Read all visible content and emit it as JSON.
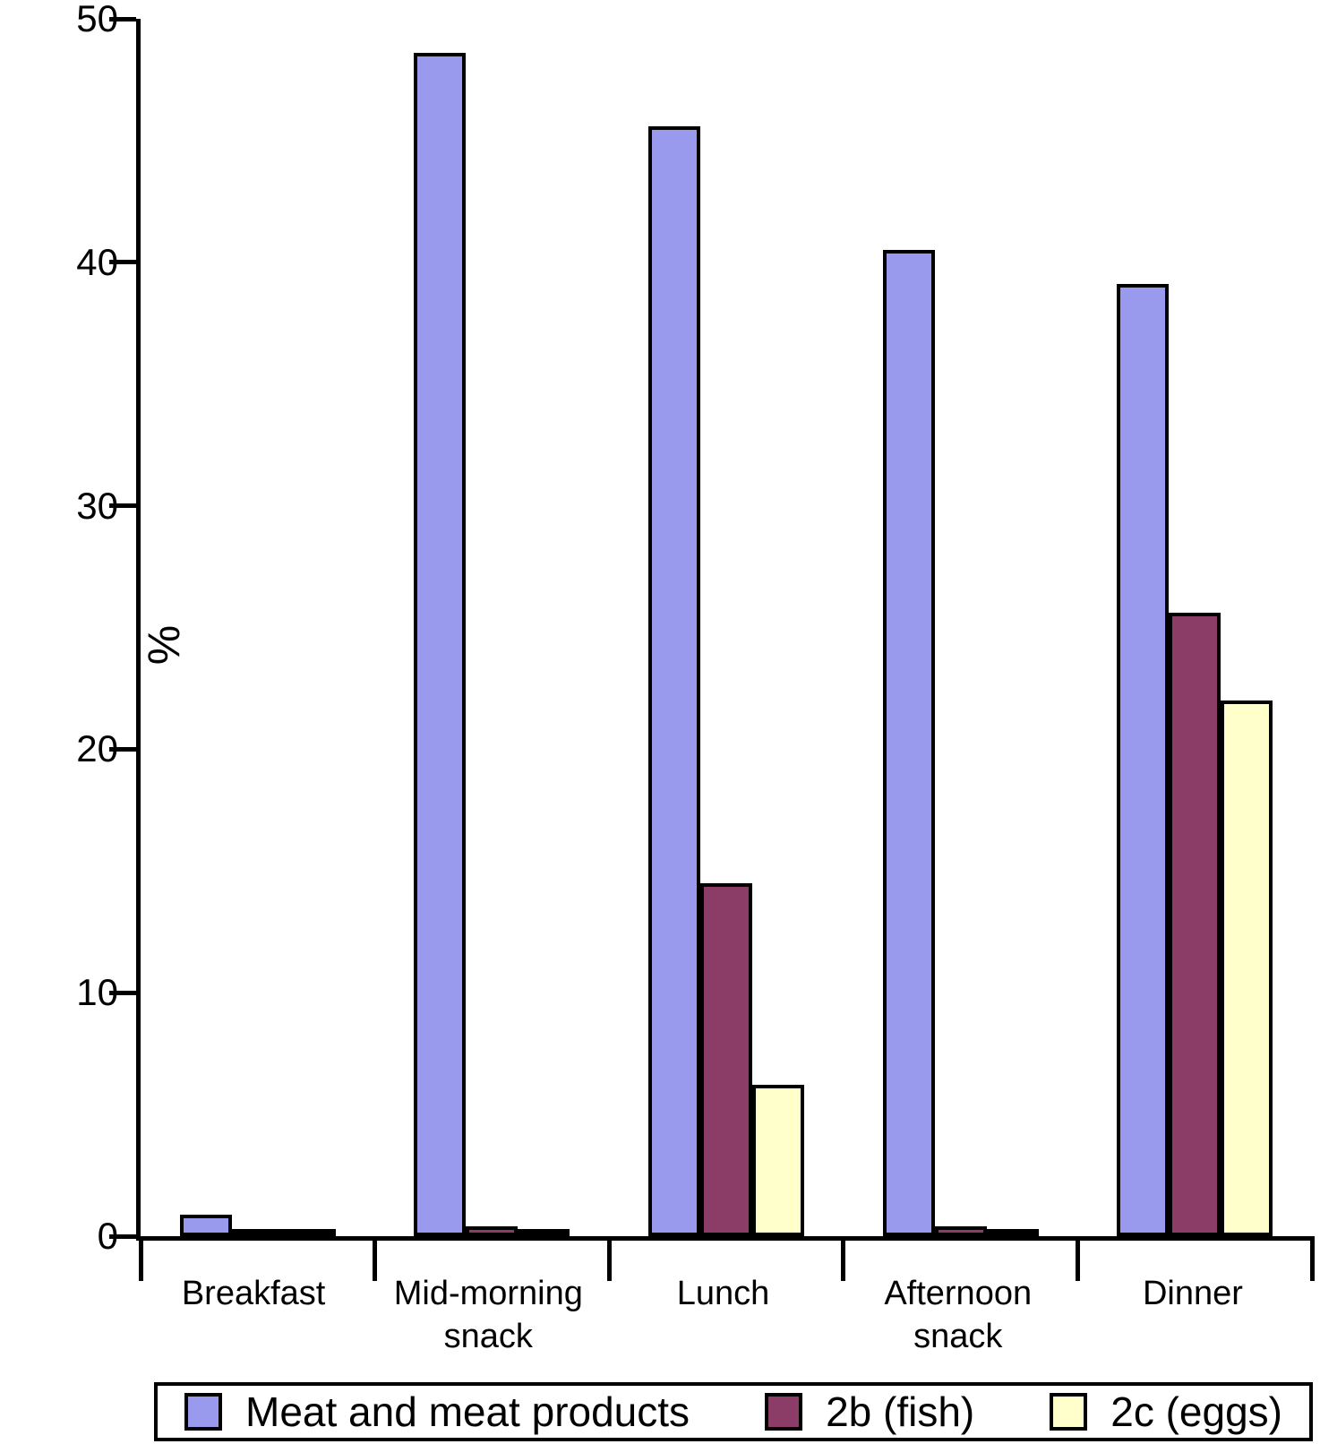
{
  "chart_data": {
    "type": "bar",
    "title": "",
    "xlabel": "",
    "ylabel": "%",
    "ylim": [
      0,
      50
    ],
    "yticks": [
      0,
      10,
      20,
      30,
      40,
      50
    ],
    "grid": false,
    "legend_position": "bottom",
    "bar_border_color": "#000000",
    "categories": [
      "Breakfast",
      "Mid-morning snack",
      "Lunch",
      "Afternoon snack",
      "Dinner"
    ],
    "category_lines": [
      [
        "Breakfast"
      ],
      [
        "Mid-morning",
        "snack"
      ],
      [
        "Lunch"
      ],
      [
        "Afternoon",
        "snack"
      ],
      [
        "Dinner"
      ]
    ],
    "series": [
      {
        "name": "Meat and meat products",
        "color": "#9999ee",
        "values": [
          0.9,
          48.6,
          45.6,
          40.5,
          39.1
        ]
      },
      {
        "name": "2b (fish)",
        "color": "#8b3d68",
        "values": [
          0.2,
          0.4,
          14.5,
          0.4,
          25.6
        ]
      },
      {
        "name": "2c (eggs)",
        "color": "#ffffcc",
        "values": [
          0.3,
          0.1,
          6.2,
          0.2,
          22.0
        ]
      }
    ]
  }
}
